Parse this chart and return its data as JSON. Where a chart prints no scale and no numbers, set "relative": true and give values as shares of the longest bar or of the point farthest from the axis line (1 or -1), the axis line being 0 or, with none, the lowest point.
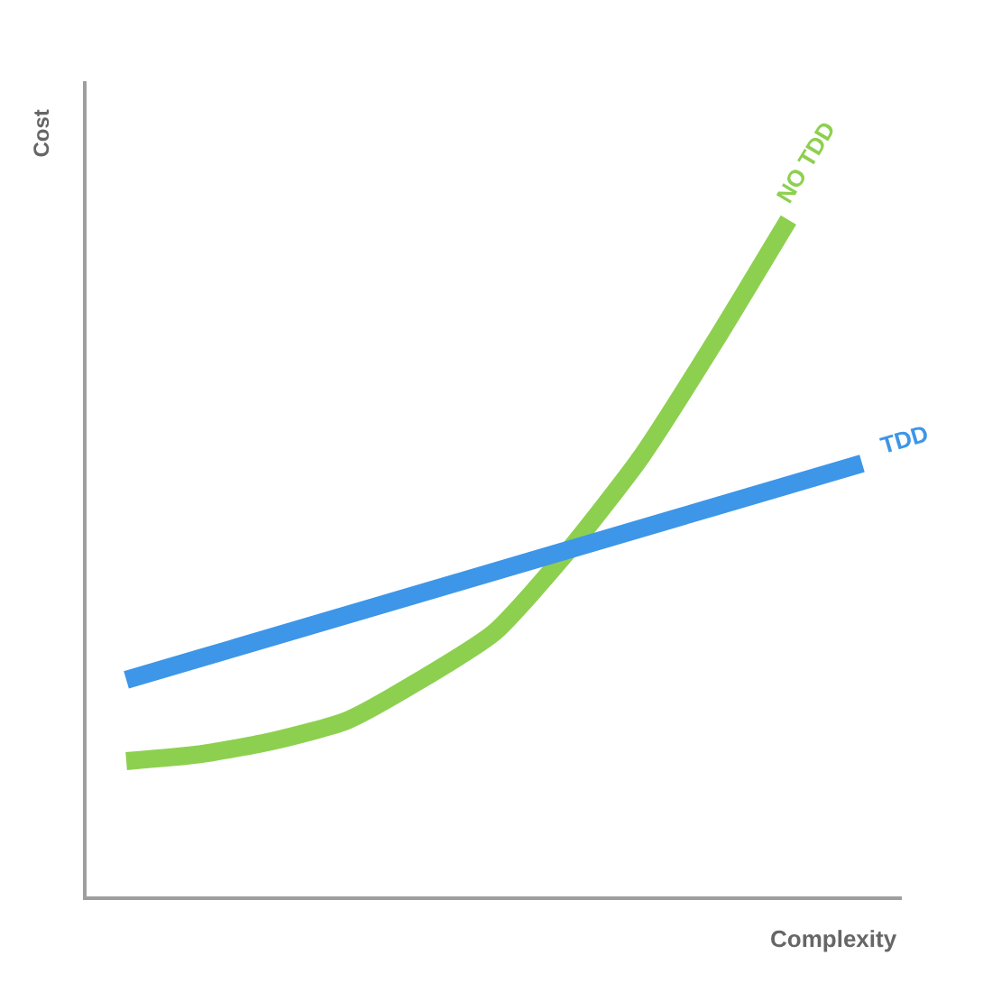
{
  "chart_data": {
    "type": "line",
    "relative": true,
    "xlabel": "Complexity",
    "ylabel": "Cost",
    "categories": [
      null,
      null,
      null,
      null,
      null,
      null,
      null,
      null,
      null,
      null,
      null
    ],
    "series": [
      {
        "name": "NO TDD",
        "color": "#8dd04f",
        "values": [
          0.2,
          0.21,
          0.23,
          0.26,
          0.32,
          0.39,
          0.51,
          0.65,
          0.82,
          1.0,
          null
        ]
      },
      {
        "name": "TDD",
        "color": "#3d96e8",
        "values": [
          0.32,
          0.352,
          0.384,
          0.416,
          0.448,
          0.48,
          0.512,
          0.544,
          0.576,
          0.608,
          0.64
        ]
      }
    ],
    "legend": false,
    "marker": "none",
    "line_style": "solid"
  }
}
